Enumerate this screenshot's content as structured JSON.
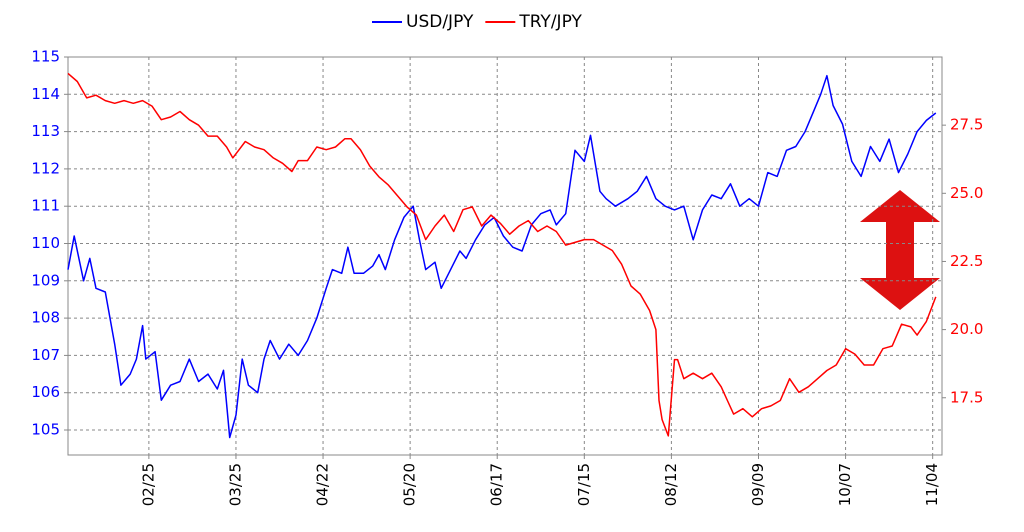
{
  "chart_data": {
    "type": "line",
    "xlim": [
      0,
      281
    ],
    "xticks": [
      {
        "value": 26,
        "label": "02/25"
      },
      {
        "value": 54,
        "label": "03/25"
      },
      {
        "value": 82,
        "label": "04/22"
      },
      {
        "value": 110,
        "label": "05/20"
      },
      {
        "value": 138,
        "label": "06/17"
      },
      {
        "value": 166,
        "label": "07/15"
      },
      {
        "value": 194,
        "label": "08/12"
      },
      {
        "value": 222,
        "label": "09/09"
      },
      {
        "value": 250,
        "label": "10/07"
      },
      {
        "value": 278,
        "label": "11/04"
      }
    ],
    "ylim": [
      104.33,
      115
    ],
    "yticks": [
      105,
      106,
      107,
      108,
      109,
      110,
      111,
      112,
      113,
      114,
      115
    ],
    "y2lim": [
      15.4,
      30.0
    ],
    "y2ticks": [
      17.5,
      {
        "value": 20,
        "label": "20.0"
      },
      22.5,
      {
        "value": 25,
        "label": "25.0"
      },
      27.5
    ],
    "grid": true,
    "legend": "top",
    "series": [
      {
        "name": "USD/JPY",
        "color": "#0000ff",
        "x": [
          0,
          2,
          5,
          7,
          9,
          12,
          15,
          17,
          20,
          22,
          24,
          25,
          28,
          30,
          33,
          36,
          39,
          42,
          45,
          48,
          50,
          52,
          54,
          56,
          58,
          61,
          63,
          65,
          68,
          71,
          74,
          77,
          80,
          83,
          85,
          88,
          90,
          92,
          95,
          98,
          100,
          102,
          105,
          108,
          111,
          113,
          115,
          118,
          120,
          123,
          126,
          128,
          131,
          134,
          137,
          140,
          143,
          146,
          149,
          152,
          155,
          157,
          160,
          163,
          166,
          168,
          171,
          173,
          176,
          180,
          183,
          186,
          189,
          192,
          195,
          198,
          201,
          204,
          207,
          210,
          213,
          216,
          219,
          222,
          225,
          228,
          231,
          234,
          237,
          240,
          242,
          244,
          246,
          249,
          252,
          255,
          258,
          261,
          264,
          267,
          270,
          273,
          276,
          279
        ],
        "values": [
          109.3,
          110.2,
          109.0,
          109.6,
          108.8,
          108.7,
          107.3,
          106.2,
          106.5,
          106.9,
          107.8,
          106.9,
          107.1,
          105.8,
          106.2,
          106.3,
          106.9,
          106.3,
          106.5,
          106.1,
          106.6,
          104.8,
          105.4,
          106.9,
          106.2,
          106.0,
          106.9,
          107.4,
          106.9,
          107.3,
          107.0,
          107.4,
          108.0,
          108.8,
          109.3,
          109.2,
          109.9,
          109.2,
          109.2,
          109.4,
          109.7,
          109.3,
          110.1,
          110.7,
          111.0,
          110.1,
          109.3,
          109.5,
          108.8,
          109.3,
          109.8,
          109.6,
          110.1,
          110.5,
          110.7,
          110.2,
          109.9,
          109.8,
          110.5,
          110.8,
          110.9,
          110.5,
          110.8,
          112.5,
          112.2,
          112.9,
          111.4,
          111.2,
          111.0,
          111.2,
          111.4,
          111.8,
          111.2,
          111.0,
          110.9,
          111.0,
          110.1,
          110.9,
          111.3,
          111.2,
          111.6,
          111.0,
          111.2,
          111.0,
          111.9,
          111.8,
          112.5,
          112.6,
          113.0,
          113.6,
          114.0,
          114.5,
          113.7,
          113.2,
          112.2,
          111.8,
          112.6,
          112.2,
          112.8,
          111.9,
          112.4,
          113.0,
          113.3,
          113.5
        ]
      },
      {
        "name": "TRY/JPY",
        "color": "#ff0000",
        "axis": "y2",
        "x": [
          0,
          3,
          6,
          9,
          12,
          15,
          18,
          21,
          24,
          27,
          30,
          33,
          36,
          39,
          42,
          45,
          48,
          51,
          53,
          55,
          57,
          60,
          63,
          66,
          69,
          72,
          74,
          77,
          80,
          83,
          86,
          89,
          91,
          94,
          97,
          100,
          103,
          106,
          109,
          112,
          115,
          118,
          121,
          124,
          127,
          130,
          133,
          136,
          139,
          142,
          145,
          148,
          151,
          154,
          157,
          160,
          163,
          166,
          169,
          172,
          175,
          178,
          181,
          184,
          187,
          189,
          190,
          191,
          193,
          195,
          196,
          198,
          201,
          204,
          207,
          210,
          212,
          214,
          217,
          220,
          223,
          226,
          229,
          232,
          235,
          238,
          241,
          244,
          247,
          250,
          253,
          256,
          259,
          262,
          265,
          268,
          271,
          273,
          276,
          279
        ],
        "values": [
          29.4,
          29.1,
          28.5,
          28.6,
          28.4,
          28.3,
          28.4,
          28.3,
          28.4,
          28.2,
          27.7,
          27.8,
          28.0,
          27.7,
          27.5,
          27.1,
          27.1,
          26.7,
          26.3,
          26.6,
          26.9,
          26.7,
          26.6,
          26.3,
          26.1,
          25.8,
          26.2,
          26.2,
          26.7,
          26.6,
          26.7,
          27.0,
          27.0,
          26.6,
          26.0,
          25.6,
          25.3,
          24.9,
          24.5,
          24.2,
          23.3,
          23.8,
          24.2,
          23.6,
          24.4,
          24.5,
          23.8,
          24.2,
          23.9,
          23.5,
          23.8,
          24.0,
          23.6,
          23.8,
          23.6,
          23.1,
          23.2,
          23.3,
          23.3,
          23.1,
          22.9,
          22.4,
          21.6,
          21.3,
          20.7,
          20.0,
          17.4,
          16.7,
          16.1,
          18.9,
          18.9,
          18.2,
          18.4,
          18.2,
          18.4,
          17.9,
          17.4,
          16.9,
          17.1,
          16.8,
          17.1,
          17.2,
          17.4,
          18.2,
          17.7,
          17.9,
          18.2,
          18.5,
          18.7,
          19.3,
          19.1,
          18.7,
          18.7,
          19.3,
          19.4,
          20.2,
          20.1,
          19.8,
          20.3,
          21.2
        ]
      }
    ]
  }
}
